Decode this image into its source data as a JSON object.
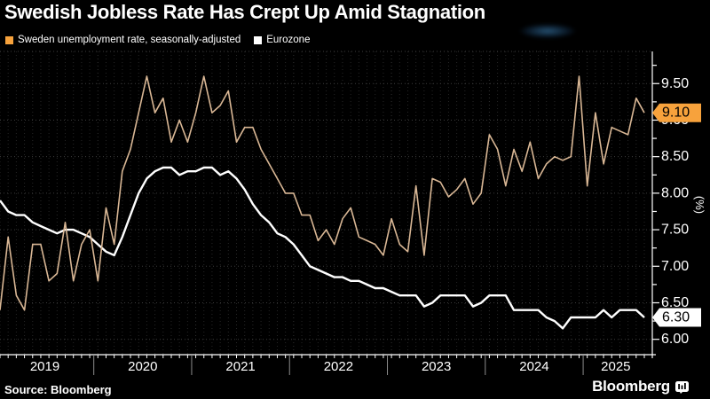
{
  "title": "Swedish Jobless Rate Has Crept Up Amid Stagnation",
  "legend": [
    {
      "label": "Sweden unemployment rate, seasonally-adjusted",
      "color": "#f7a23c"
    },
    {
      "label": "Eurozone",
      "color": "#ffffff"
    }
  ],
  "footer": {
    "source": "Source: Bloomberg",
    "brand": "Bloomberg"
  },
  "colors": {
    "background": "#000000",
    "axis": "#ffffff",
    "grid_major": "#3c3c3c",
    "grid_minor": "#262626",
    "year_separator": "#8c8c8c",
    "sweden_line": "#d9b795",
    "sweden_accent": "#f7a23c",
    "eurozone_line": "#ffffff",
    "badge_text": "#000000"
  },
  "chart_data": {
    "type": "line",
    "title": "Swedish Jobless Rate Has Crept Up Amid Stagnation",
    "frequency": "monthly",
    "start_month": "2019-01",
    "end_month": "2025-08",
    "x_year_labels": [
      "2019",
      "2020",
      "2021",
      "2022",
      "2023",
      "2024",
      "2025"
    ],
    "ylabel": "(%)",
    "ylim": [
      5.79,
      9.94
    ],
    "y_tick_labels": [
      "9.50",
      "9.00",
      "8.50",
      "8.00",
      "7.50",
      "7.00",
      "6.50",
      "6.00"
    ],
    "y_tick_values_labeled": [
      9.5,
      9.0,
      8.5,
      8.0,
      7.5,
      7.0,
      6.5,
      6.0
    ],
    "y_tick_minor_step": 0.25,
    "grid": "dotted",
    "legend_position": "top-left",
    "series": [
      {
        "name": "Sweden unemployment rate, seasonally-adjusted",
        "last_value_label": "9.10",
        "values": [
          6.4,
          7.4,
          6.6,
          6.4,
          7.3,
          7.3,
          6.8,
          6.9,
          7.6,
          6.8,
          7.3,
          7.5,
          6.8,
          7.8,
          7.3,
          8.3,
          8.6,
          9.1,
          9.6,
          9.1,
          9.3,
          8.7,
          9.0,
          8.7,
          9.1,
          9.6,
          9.1,
          9.2,
          9.4,
          8.7,
          8.9,
          8.9,
          8.6,
          8.4,
          8.2,
          8.0,
          8.0,
          7.7,
          7.7,
          7.35,
          7.5,
          7.3,
          7.65,
          7.8,
          7.4,
          7.35,
          7.3,
          7.15,
          7.65,
          7.3,
          7.2,
          8.1,
          7.15,
          8.2,
          8.15,
          7.95,
          8.05,
          8.2,
          7.85,
          8.0,
          8.8,
          8.6,
          8.1,
          8.6,
          8.3,
          8.7,
          8.2,
          8.4,
          8.5,
          8.45,
          8.5,
          9.6,
          8.1,
          9.1,
          8.4,
          8.9,
          8.85,
          8.8,
          9.3,
          9.1
        ]
      },
      {
        "name": "Eurozone",
        "last_value_label": "6.30",
        "values": [
          7.9,
          7.75,
          7.7,
          7.7,
          7.6,
          7.55,
          7.5,
          7.45,
          7.5,
          7.5,
          7.45,
          7.4,
          7.3,
          7.2,
          7.15,
          7.4,
          7.7,
          8.0,
          8.2,
          8.3,
          8.35,
          8.35,
          8.25,
          8.3,
          8.3,
          8.35,
          8.35,
          8.25,
          8.3,
          8.2,
          8.05,
          7.85,
          7.7,
          7.6,
          7.45,
          7.4,
          7.3,
          7.15,
          7.0,
          6.95,
          6.9,
          6.85,
          6.85,
          6.8,
          6.8,
          6.75,
          6.7,
          6.7,
          6.65,
          6.6,
          6.6,
          6.6,
          6.45,
          6.5,
          6.6,
          6.6,
          6.6,
          6.6,
          6.45,
          6.5,
          6.6,
          6.6,
          6.6,
          6.4,
          6.4,
          6.4,
          6.4,
          6.3,
          6.25,
          6.15,
          6.3,
          6.3,
          6.3,
          6.3,
          6.4,
          6.3,
          6.4,
          6.4,
          6.4,
          6.3
        ]
      }
    ]
  }
}
